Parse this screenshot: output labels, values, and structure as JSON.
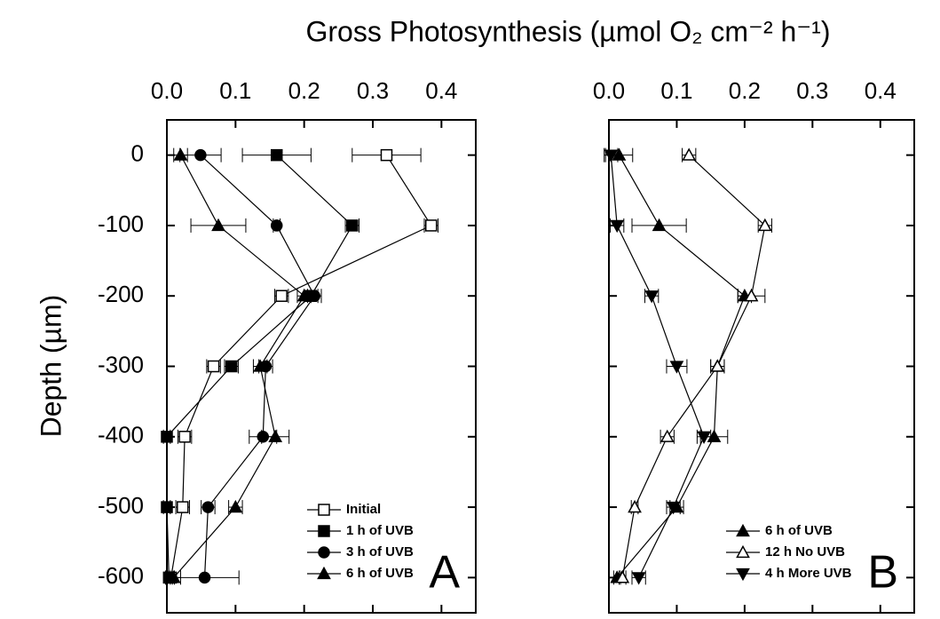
{
  "chart_data": [
    {
      "type": "line",
      "title": "Gross Photosynthesis (µmol O₂ cm⁻² h⁻¹)",
      "ylabel": "Depth (µm)",
      "panel_label": "A",
      "xlim": [
        0,
        0.45
      ],
      "xticks": [
        {
          "value": 0,
          "label": "0.0"
        },
        {
          "value": 0.1,
          "label": "0.1"
        },
        {
          "value": 0.2,
          "label": "0.2"
        },
        {
          "value": 0.3,
          "label": "0.3"
        },
        {
          "value": 0.4,
          "label": "0.4"
        }
      ],
      "ylim": [
        -650,
        50
      ],
      "yticks": [
        0,
        -100,
        -200,
        -300,
        -400,
        -500,
        -600
      ],
      "legend": "lower right",
      "y": [
        0,
        -100,
        -200,
        -300,
        -400,
        -500,
        -600
      ],
      "series": [
        {
          "name": "Initial",
          "color": "#000000",
          "marker": "square",
          "filled": false,
          "values": [
            0.32,
            0.385,
            0.167,
            0.068,
            0.026,
            0.023,
            0.006
          ],
          "errors": [
            0.05,
            0.01,
            0.01,
            0.01,
            0.01,
            0.01,
            0.005
          ]
        },
        {
          "name": "1 h of UVB",
          "color": "#000000",
          "marker": "square",
          "filled": true,
          "values": [
            0.16,
            0.27,
            0.21,
            0.094,
            0.0,
            0.0,
            0.003
          ],
          "errors": [
            0.05,
            0.01,
            0.01,
            0.01,
            0.005,
            0.005,
            0.005
          ]
        },
        {
          "name": "3 h of UVB",
          "color": "#000000",
          "marker": "circle",
          "filled": true,
          "values": [
            0.049,
            0.16,
            0.215,
            0.144,
            0.14,
            0.06,
            0.055
          ],
          "errors": [
            0.03,
            0.005,
            0.01,
            0.01,
            0.02,
            0.01,
            0.05
          ]
        },
        {
          "name": "6 h of UVB",
          "color": "#000000",
          "marker": "triangle",
          "filled": true,
          "values": [
            0.02,
            0.075,
            0.2,
            0.136,
            0.158,
            0.1,
            0.01
          ],
          "errors": [
            0.01,
            0.04,
            0.01,
            0.01,
            0.02,
            0.01,
            0.01
          ]
        }
      ]
    },
    {
      "type": "line",
      "panel_label": "B",
      "xlim": [
        0,
        0.45
      ],
      "xticks": [
        {
          "value": 0,
          "label": "0.0"
        },
        {
          "value": 0.1,
          "label": "0.1"
        },
        {
          "value": 0.2,
          "label": "0.2"
        },
        {
          "value": 0.3,
          "label": "0.3"
        },
        {
          "value": 0.4,
          "label": "0.4"
        }
      ],
      "ylim": [
        -650,
        50
      ],
      "yticks": [
        0,
        -100,
        -200,
        -300,
        -400,
        -500,
        -600
      ],
      "legend": "lower right",
      "y": [
        0,
        -100,
        -200,
        -300,
        -400,
        -500,
        -600
      ],
      "series": [
        {
          "name": "6 h of UVB",
          "color": "#000000",
          "marker": "triangle",
          "filled": true,
          "values": [
            0.015,
            0.074,
            0.2,
            0.16,
            0.155,
            0.1,
            0.012
          ],
          "errors": [
            0.02,
            0.04,
            0.01,
            0.01,
            0.02,
            0.01,
            0.005
          ]
        },
        {
          "name": "12 h No UVB",
          "color": "#000000",
          "marker": "triangle",
          "filled": false,
          "values": [
            0.118,
            0.23,
            0.21,
            0.16,
            0.086,
            0.038,
            0.02
          ],
          "errors": [
            0.01,
            0.01,
            0.02,
            0.01,
            0.01,
            0.005,
            0.005
          ]
        },
        {
          "name": "4 h More UVB",
          "color": "#000000",
          "marker": "triangle-down",
          "filled": true,
          "values": [
            0.003,
            0.012,
            0.063,
            0.1,
            0.14,
            0.095,
            0.044
          ],
          "errors": [
            0.01,
            0.01,
            0.01,
            0.015,
            0.01,
            0.01,
            0.01
          ]
        }
      ]
    }
  ]
}
